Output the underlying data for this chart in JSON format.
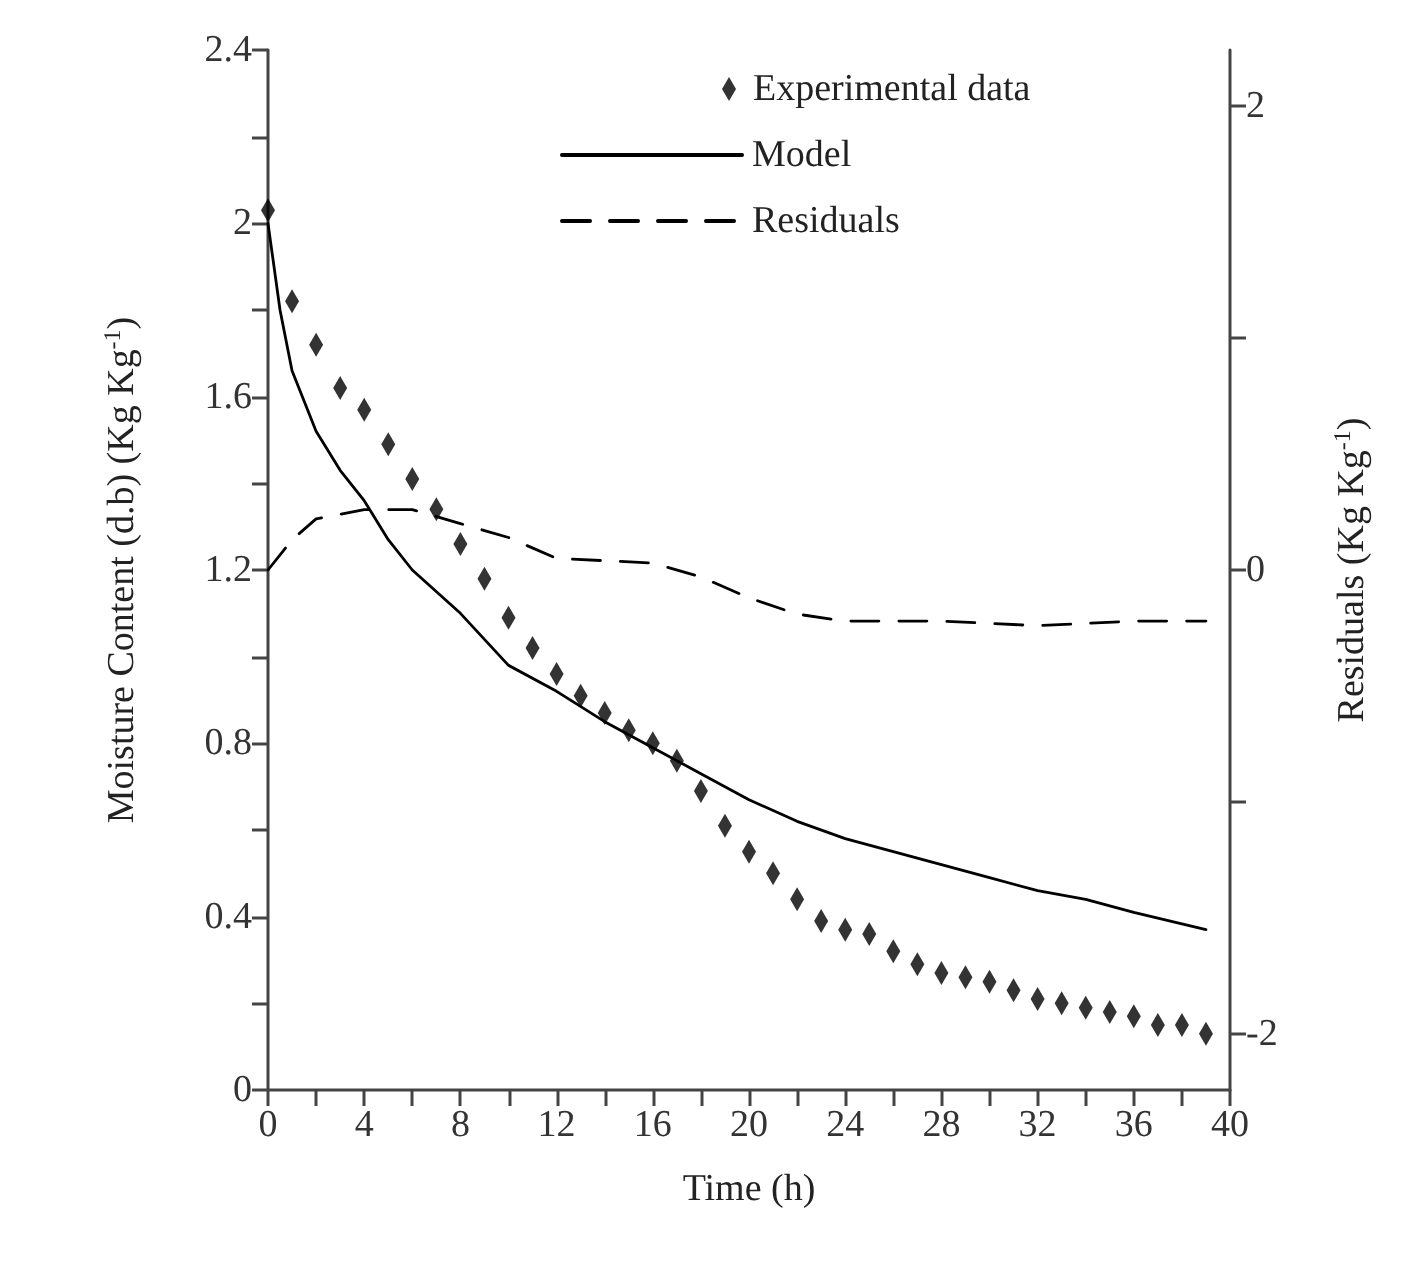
{
  "chart_data": {
    "type": "scatter",
    "xlabel": "Time (h)",
    "ylabel": "Moisture Content (d.b) (Kg Kg$^{-1}$)",
    "y2label": "Residuals (Kg Kg$^{-1}$)",
    "xlim": [
      0,
      40
    ],
    "xticks": [
      0,
      {
        "value": 2,
        "label": null
      },
      4,
      {
        "value": 6,
        "label": null
      },
      8,
      {
        "value": 10,
        "label": null
      },
      12,
      {
        "value": 14,
        "label": null
      },
      16,
      {
        "value": 18,
        "label": null
      },
      20,
      {
        "value": 22,
        "label": null
      },
      24,
      {
        "value": 26,
        "label": null
      },
      28,
      {
        "value": 30,
        "label": null
      },
      32,
      {
        "value": 34,
        "label": null
      },
      36,
      {
        "value": 38,
        "label": null
      },
      40
    ],
    "ylim": [
      0,
      2.4
    ],
    "yticks": [
      0,
      {
        "value": 0.2,
        "label": null
      },
      0.4,
      {
        "value": 0.6,
        "label": null
      },
      0.8,
      {
        "value": 1,
        "label": null
      },
      1.2,
      {
        "value": 1.4,
        "label": null
      },
      1.6,
      {
        "value": 1.8,
        "label": null
      },
      2,
      {
        "value": 2.2,
        "label": null
      },
      2.4
    ],
    "y2lim": [
      -2.24,
      2.24
    ],
    "y2ticks": [
      -2,
      {
        "value": -1,
        "label": null
      },
      0,
      {
        "value": 1,
        "label": null
      },
      2
    ],
    "grid": false,
    "legend": "top right",
    "series": [
      {
        "name": "Experimental data",
        "marker": "diamond",
        "color": "#000000",
        "x": [
          0,
          1,
          2,
          3,
          4,
          5,
          6,
          7,
          8,
          9,
          10,
          11,
          12,
          13,
          14,
          15,
          16,
          17,
          18,
          19,
          20,
          21,
          22,
          23,
          24,
          25,
          26,
          27,
          28,
          29,
          30,
          31,
          32,
          33,
          34,
          35,
          36,
          37,
          38,
          39
        ],
        "values": [
          2.03,
          1.82,
          1.72,
          1.62,
          1.57,
          1.49,
          1.41,
          1.34,
          1.26,
          1.18,
          1.09,
          1.02,
          0.96,
          0.91,
          0.87,
          0.83,
          0.8,
          0.76,
          0.69,
          0.61,
          0.55,
          0.5,
          0.44,
          0.39,
          0.37,
          0.36,
          0.32,
          0.29,
          0.27,
          0.26,
          0.25,
          0.23,
          0.21,
          0.2,
          0.19,
          0.18,
          0.17,
          0.15,
          0.15,
          0.13
        ]
      },
      {
        "name": "Model",
        "type": "line",
        "line_style": "solid",
        "marker": "none",
        "color": "#000000",
        "x": [
          0,
          0.5,
          1,
          2,
          3,
          4,
          5,
          6,
          8,
          10,
          12,
          14,
          16,
          18,
          20,
          22,
          24,
          26,
          28,
          30,
          32,
          34,
          36,
          39
        ],
        "values": [
          2.0,
          1.8,
          1.66,
          1.52,
          1.43,
          1.36,
          1.27,
          1.2,
          1.1,
          0.98,
          0.92,
          0.85,
          0.79,
          0.73,
          0.67,
          0.62,
          0.58,
          0.55,
          0.52,
          0.49,
          0.46,
          0.44,
          0.41,
          0.37
        ]
      },
      {
        "name": "Residuals",
        "type": "line",
        "axis": "y2",
        "line_style": "dashed",
        "marker": "none",
        "color": "#000000",
        "x": [
          0,
          1,
          2,
          4,
          6,
          8,
          10,
          12,
          14,
          16,
          18,
          20,
          22,
          24,
          28,
          32,
          36,
          39
        ],
        "values": [
          0,
          0.13,
          0.22,
          0.26,
          0.26,
          0.2,
          0.14,
          0.05,
          0.04,
          0.03,
          -0.03,
          -0.12,
          -0.19,
          -0.22,
          -0.22,
          -0.24,
          -0.22,
          -0.22
        ]
      }
    ]
  }
}
